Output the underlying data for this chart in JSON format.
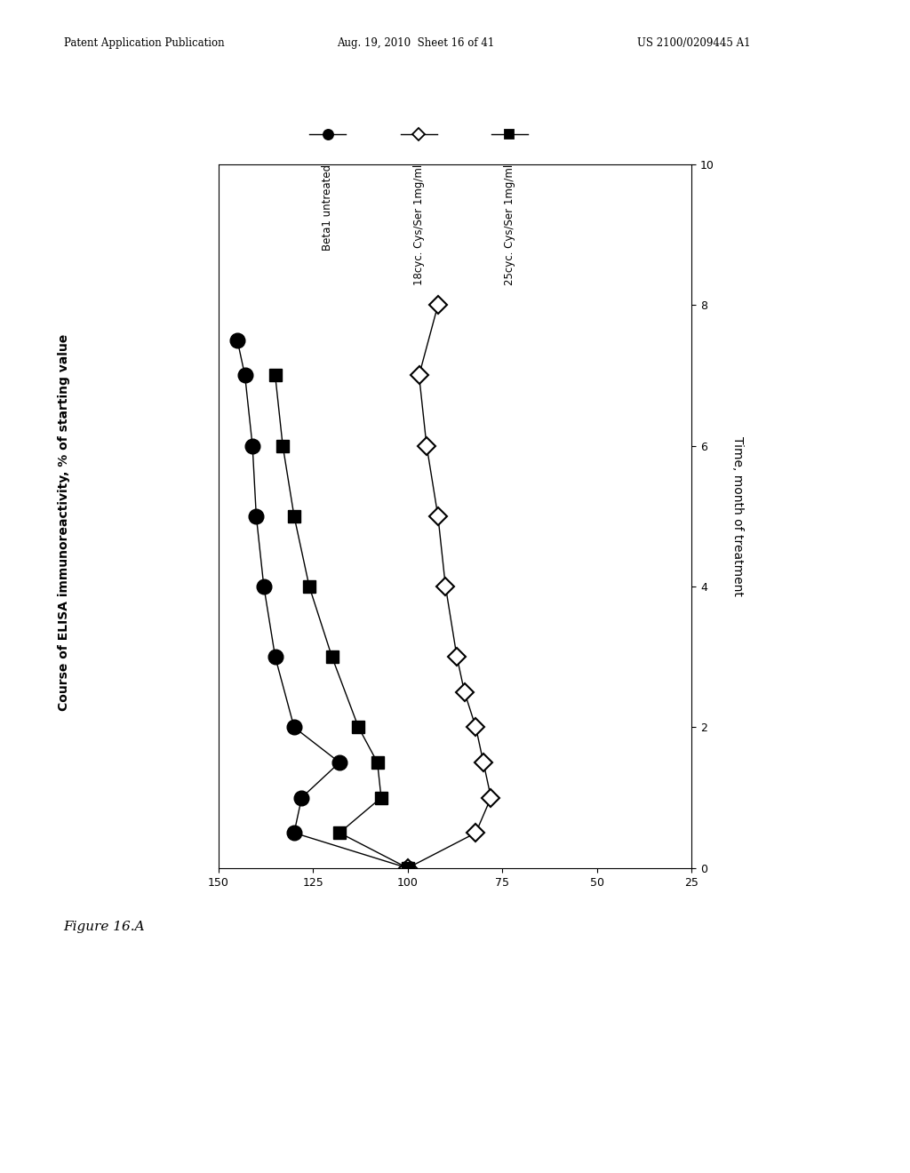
{
  "patent_header_left": "Patent Application Publication",
  "patent_header_mid": "Aug. 19, 2010  Sheet 16 of 41",
  "patent_header_right": "US 2100/0209445 A1",
  "figure_label": "Figure 16.A",
  "ylabel_left": "Course of ELISA immunoreactivity, % of starting value",
  "ylabel_right": "Time, month of treatment",
  "xlim": [
    150,
    25
  ],
  "ylim": [
    0,
    10
  ],
  "xticks": [
    150,
    125,
    100,
    75,
    50,
    25
  ],
  "yticks": [
    0,
    2,
    4,
    6,
    8,
    10
  ],
  "legend_items": [
    {
      "label": "Beta1 untreated",
      "marker": "o",
      "filled": true
    },
    {
      "label": "18cyc. Cys/Ser 1mg/ml",
      "marker": "D",
      "filled": false
    },
    {
      "label": "25cyc. Cys/Ser 1mg/ml",
      "marker": "s",
      "filled": true
    }
  ],
  "beta1_x": [
    100,
    130,
    128,
    118,
    130,
    135,
    138,
    140,
    141,
    143,
    145
  ],
  "beta1_y": [
    0,
    0.5,
    1.0,
    1.5,
    2.0,
    3.0,
    4.0,
    5.0,
    6.0,
    7.0,
    7.5
  ],
  "dia18_x": [
    100,
    82,
    78,
    80,
    82,
    85,
    87,
    90,
    92,
    95,
    97,
    92
  ],
  "dia18_y": [
    0,
    0.5,
    1.0,
    1.5,
    2.0,
    2.5,
    3.0,
    4.0,
    5.0,
    6.0,
    7.0,
    8.0
  ],
  "sq25_x": [
    100,
    118,
    107,
    108,
    113,
    120,
    126,
    130,
    133,
    135
  ],
  "sq25_y": [
    0,
    0.5,
    1.0,
    1.5,
    2.0,
    3.0,
    4.0,
    5.0,
    6.0,
    7.0
  ]
}
